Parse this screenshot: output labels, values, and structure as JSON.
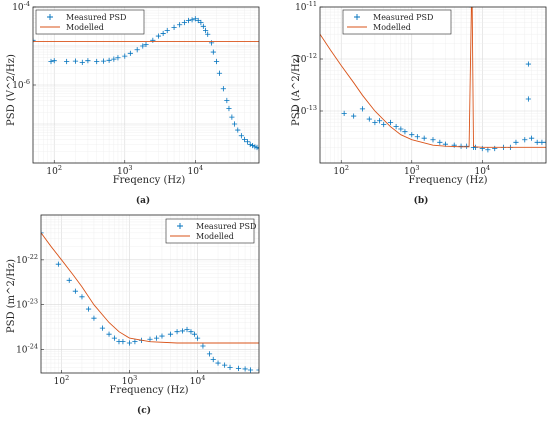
{
  "colors": {
    "measured": "#0072BD",
    "modelled": "#D95319",
    "axis": "#262626",
    "grid": "#d9d9d9"
  },
  "chart_data": [
    {
      "id": "a",
      "type": "scatter",
      "panel_label": "(a)",
      "xlabel": "Freqency (Hz)",
      "ylabel": "PSD (V^2/Hz)",
      "xscale": "log",
      "yscale": "log",
      "xlim": [
        50,
        80000
      ],
      "ylim": [
        1e-08,
        0.0001
      ],
      "x_ticks": [
        {
          "v": 100,
          "base": "10",
          "exp": "2"
        },
        {
          "v": 1000,
          "base": "10",
          "exp": "3"
        },
        {
          "v": 10000,
          "base": "10",
          "exp": "4"
        }
      ],
      "y_ticks": [
        {
          "v": 1e-06,
          "base": "10",
          "exp": "-6"
        },
        {
          "v": 0.0001,
          "base": "10",
          "exp": "-4"
        }
      ],
      "grid": true,
      "legend": {
        "placement": "top-left",
        "entries": [
          "Measured PSD",
          "Modelled"
        ]
      },
      "series": [
        {
          "name": "Measured PSD",
          "kind": "markers",
          "x": [
            50,
            90,
            100,
            150,
            200,
            250,
            300,
            400,
            500,
            600,
            700,
            800,
            1000,
            1200,
            1500,
            1800,
            2000,
            2500,
            3000,
            3500,
            4000,
            5000,
            6000,
            7000,
            8000,
            9000,
            10000,
            11000,
            12000,
            13000,
            14000,
            15000,
            17000,
            18000,
            20000,
            22000,
            25000,
            28000,
            30000,
            33000,
            36000,
            40000,
            45000,
            50000,
            55000,
            60000,
            65000,
            70000,
            75000,
            80000
          ],
          "y": [
            1.4e-05,
            4e-06,
            4.2e-06,
            4e-06,
            4.1e-06,
            3.8e-06,
            4.2e-06,
            4e-06,
            4.1e-06,
            4.3e-06,
            4.6e-06,
            5e-06,
            5.5e-06,
            6.5e-06,
            8e-06,
            1e-05,
            1.1e-05,
            1.4e-05,
            1.8e-05,
            2.1e-05,
            2.5e-05,
            3e-05,
            3.5e-05,
            4e-05,
            4.5e-05,
            4.7e-05,
            5e-05,
            4.5e-05,
            4e-05,
            3.2e-05,
            2.5e-05,
            2e-05,
            1.2e-05,
            7e-06,
            4e-06,
            2e-06,
            8e-07,
            4e-07,
            2.5e-07,
            1.5e-07,
            1e-07,
            7e-08,
            5e-08,
            4e-08,
            3.5e-08,
            3e-08,
            2.8e-08,
            2.6e-08,
            2.5e-08,
            2.4e-08
          ]
        },
        {
          "name": "Modelled",
          "kind": "line",
          "x": [
            50,
            80000
          ],
          "y": [
            1.3e-05,
            1.3e-05
          ]
        }
      ]
    },
    {
      "id": "b",
      "type": "scatter",
      "panel_label": "(b)",
      "xlabel": "Frequency (Hz)",
      "ylabel": "PSD (A^2/Hz)",
      "xscale": "log",
      "yscale": "log",
      "xlim": [
        50,
        80000
      ],
      "ylim": [
        1e-14,
        1e-11
      ],
      "x_ticks": [
        {
          "v": 100,
          "base": "10",
          "exp": "2"
        },
        {
          "v": 1000,
          "base": "10",
          "exp": "3"
        },
        {
          "v": 10000,
          "base": "10",
          "exp": "4"
        }
      ],
      "y_ticks": [
        {
          "v": 1e-13,
          "base": "10",
          "exp": "-13"
        },
        {
          "v": 1e-12,
          "base": "10",
          "exp": "-12"
        },
        {
          "v": 1e-11,
          "base": "10",
          "exp": "-11"
        }
      ],
      "grid": true,
      "legend": {
        "placement": "top-left",
        "entries": [
          "Measured PSD",
          "Modelled"
        ]
      },
      "series": [
        {
          "name": "Measured PSD",
          "kind": "markers",
          "x": [
            110,
            150,
            200,
            250,
            300,
            350,
            400,
            500,
            600,
            700,
            800,
            1000,
            1200,
            1500,
            2000,
            2500,
            3000,
            4000,
            5000,
            6000,
            7000,
            7500,
            8000,
            10000,
            12000,
            15000,
            20000,
            25000,
            30000,
            40000,
            45000,
            45000,
            50000,
            60000,
            70000,
            80000
          ],
          "y": [
            9e-14,
            8e-14,
            1.1e-13,
            7e-14,
            6e-14,
            6.5e-14,
            5.5e-14,
            6e-14,
            5e-14,
            4.5e-14,
            4e-14,
            3.5e-14,
            3.2e-14,
            3e-14,
            2.8e-14,
            2.5e-14,
            2.3e-14,
            2.2e-14,
            2.1e-14,
            2.1e-14,
            1e-11,
            2e-14,
            2e-14,
            1.9e-14,
            1.8e-14,
            1.9e-14,
            2e-14,
            2e-14,
            2.5e-14,
            2.8e-14,
            8e-13,
            1.7e-13,
            3e-14,
            2.5e-14,
            2.5e-14,
            2.5e-14
          ]
        },
        {
          "name": "Modelled",
          "kind": "line",
          "x": [
            50,
            70,
            100,
            150,
            200,
            300,
            500,
            700,
            1000,
            2000,
            3000,
            5000,
            6500,
            7000,
            7200,
            7500,
            8000,
            10000,
            20000,
            50000,
            80000
          ],
          "y": [
            3e-12,
            1.5e-12,
            7.5e-13,
            3.5e-13,
            2e-13,
            1e-13,
            5e-14,
            3.5e-14,
            2.8e-14,
            2.2e-14,
            2.1e-14,
            2.05e-14,
            2.05e-14,
            1e-11,
            1e-11,
            2.1e-14,
            2.05e-14,
            2e-14,
            2e-14,
            2e-14,
            2e-14
          ]
        }
      ]
    },
    {
      "id": "c",
      "type": "scatter",
      "panel_label": "(c)",
      "xlabel": "Frequency (Hz)",
      "ylabel": "PSD (m^2/Hz)",
      "xscale": "log",
      "yscale": "log",
      "xlim": [
        50,
        80000
      ],
      "ylim": [
        3e-25,
        1e-21
      ],
      "x_ticks": [
        {
          "v": 100,
          "base": "10",
          "exp": "2"
        },
        {
          "v": 1000,
          "base": "10",
          "exp": "3"
        },
        {
          "v": 10000,
          "base": "10",
          "exp": "4"
        }
      ],
      "y_ticks": [
        {
          "v": 1e-24,
          "base": "10",
          "exp": "-24"
        },
        {
          "v": 1e-23,
          "base": "10",
          "exp": "-23"
        },
        {
          "v": 1e-22,
          "base": "10",
          "exp": "-22"
        }
      ],
      "grid": true,
      "legend": {
        "placement": "top-right",
        "entries": [
          "Measured PSD",
          "Modelled"
        ]
      },
      "series": [
        {
          "name": "Measured PSD",
          "kind": "markers",
          "x": [
            50,
            90,
            130,
            160,
            200,
            250,
            300,
            400,
            500,
            600,
            700,
            800,
            1000,
            1200,
            1500,
            2000,
            2500,
            3000,
            4000,
            5000,
            6000,
            7000,
            8000,
            9000,
            10000,
            12000,
            15000,
            17000,
            20000,
            25000,
            30000,
            40000,
            50000,
            60000,
            80000
          ],
          "y": [
            4e-22,
            8e-23,
            3.5e-23,
            2e-23,
            1.5e-23,
            8e-24,
            5e-24,
            3e-24,
            2.2e-24,
            1.8e-24,
            1.5e-24,
            1.5e-24,
            1.4e-24,
            1.5e-24,
            1.6e-24,
            1.7e-24,
            1.8e-24,
            2e-24,
            2.2e-24,
            2.5e-24,
            2.6e-24,
            2.8e-24,
            2.5e-24,
            2.2e-24,
            1.8e-24,
            1.2e-24,
            8e-25,
            6e-25,
            5e-25,
            4.5e-25,
            4e-25,
            3.8e-25,
            3.7e-25,
            3.5e-25,
            3.5e-25
          ]
        },
        {
          "name": "Modelled",
          "kind": "line",
          "x": [
            50,
            70,
            100,
            150,
            200,
            300,
            500,
            700,
            1000,
            2000,
            5000,
            10000,
            20000,
            50000,
            80000
          ],
          "y": [
            4e-22,
            2e-22,
            1e-22,
            4.5e-23,
            2.5e-23,
            1e-23,
            4e-24,
            2.5e-24,
            1.8e-24,
            1.5e-24,
            1.4e-24,
            1.4e-24,
            1.4e-24,
            1.4e-24,
            1.4e-24
          ]
        }
      ]
    }
  ]
}
